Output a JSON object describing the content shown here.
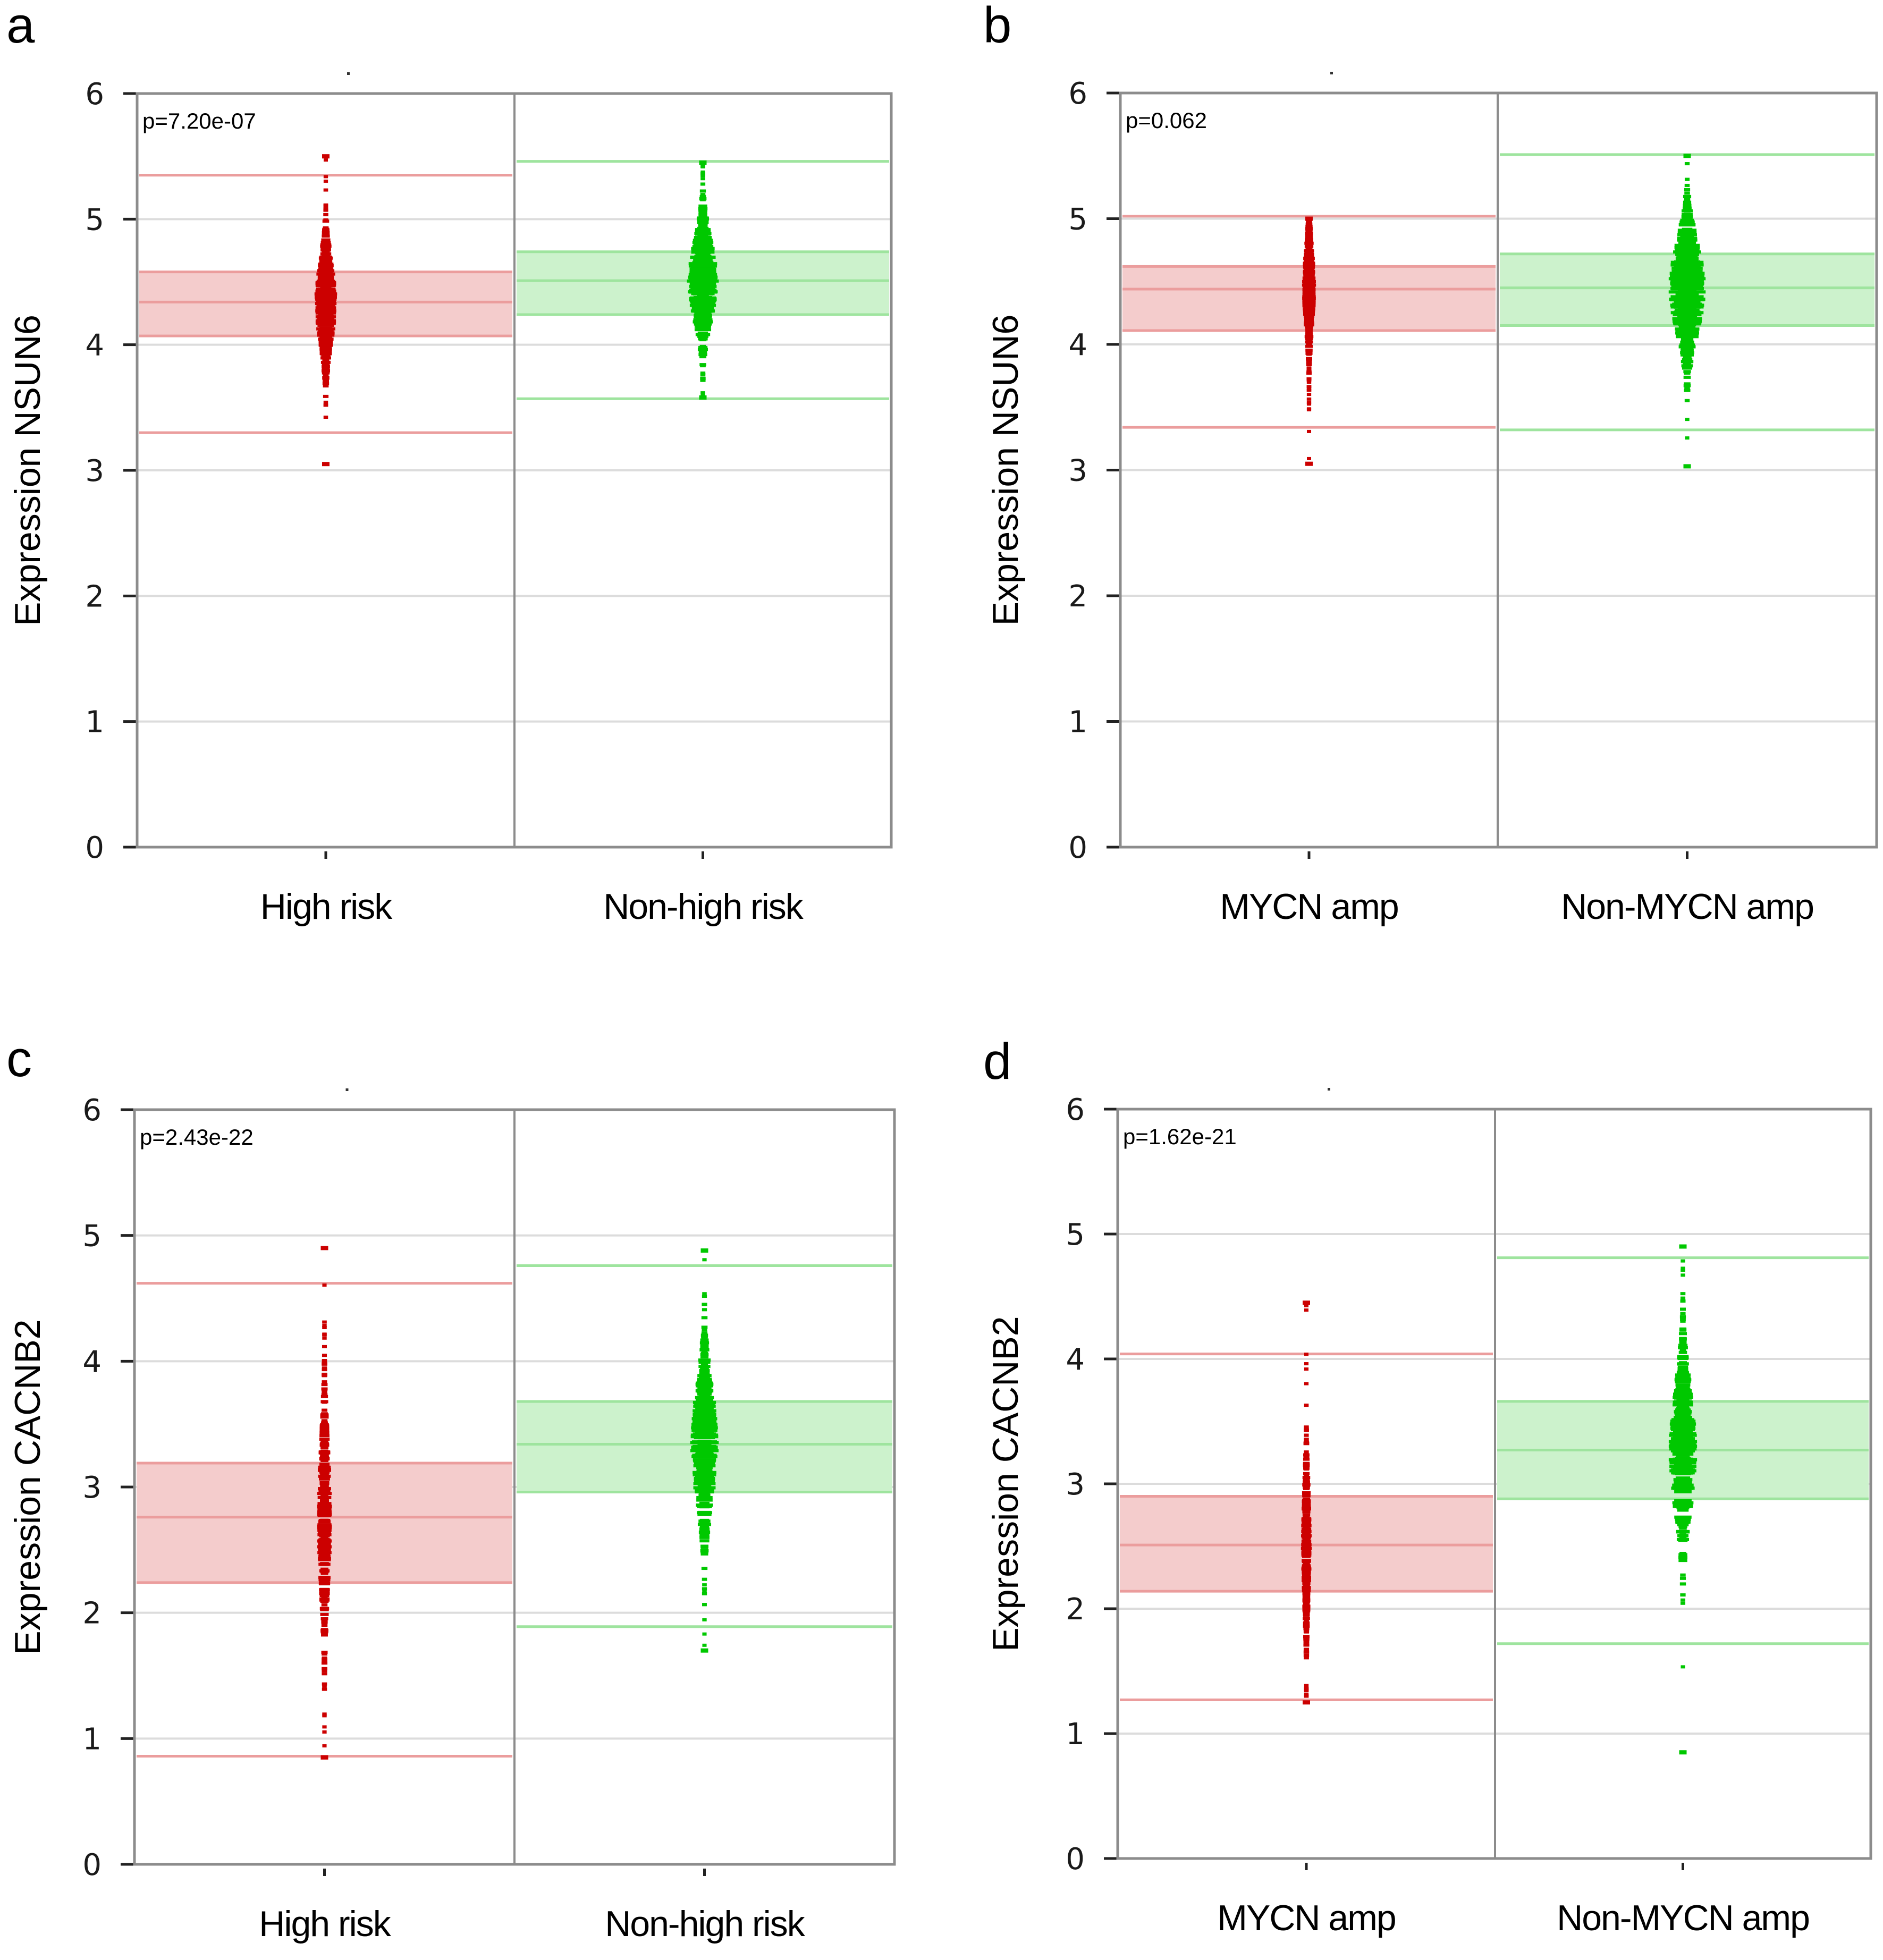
{
  "figure": {
    "colors": {
      "group1_point": "#cc0000",
      "group1_box_fill": "#f4cccc",
      "group1_line": "#eb9d9d",
      "group2_point": "#00c800",
      "group2_box_fill": "#ccf2cc",
      "group2_line": "#9ee49e",
      "frame": "#8c8c8c",
      "grid": "#dcdcdc"
    }
  },
  "chart_data": [
    {
      "panel": "a",
      "type": "scatter",
      "title": "",
      "ylabel": "Expression NSUN6",
      "xlabel": "",
      "ylim": [
        0,
        6
      ],
      "yticks": [
        "0",
        "1",
        "2",
        "3",
        "4",
        "5",
        "6"
      ],
      "grid": true,
      "annotation": "p=7.20e-07",
      "categories": [
        "High risk",
        "Non-high risk"
      ],
      "series": [
        {
          "name": "High risk",
          "whisker_low": 3.3,
          "q1": 4.07,
          "median": 4.34,
          "q3": 4.58,
          "whisker_high": 5.35,
          "points_min": 3.05,
          "points_max": 5.5,
          "spread": 0.42
        },
        {
          "name": "Non-high risk",
          "whisker_low": 3.57,
          "q1": 4.24,
          "median": 4.51,
          "q3": 4.74,
          "whisker_high": 5.46,
          "points_min": 3.58,
          "points_max": 5.45,
          "spread": 0.62
        }
      ]
    },
    {
      "panel": "b",
      "type": "scatter",
      "title": "",
      "ylabel": "Expression NSUN6",
      "xlabel": "",
      "ylim": [
        0,
        6
      ],
      "yticks": [
        "0",
        "1",
        "2",
        "3",
        "4",
        "5",
        "6"
      ],
      "grid": true,
      "annotation": "p=0.062",
      "categories": [
        "MYCN amp",
        "Non-MYCN amp"
      ],
      "series": [
        {
          "name": "MYCN amp",
          "whisker_low": 3.34,
          "q1": 4.11,
          "median": 4.44,
          "q3": 4.62,
          "whisker_high": 5.02,
          "points_min": 3.05,
          "points_max": 5.0,
          "spread": 0.22
        },
        {
          "name": "Non-MYCN amp",
          "whisker_low": 3.32,
          "q1": 4.15,
          "median": 4.45,
          "q3": 4.72,
          "whisker_high": 5.51,
          "points_min": 3.03,
          "points_max": 5.5,
          "spread": 0.75
        }
      ]
    },
    {
      "panel": "c",
      "type": "scatter",
      "title": "",
      "ylabel": "Expression CACNB2",
      "xlabel": "",
      "ylim": [
        0,
        6
      ],
      "yticks": [
        "0",
        "1",
        "2",
        "3",
        "4",
        "5",
        "6"
      ],
      "grid": true,
      "annotation": "p=2.43e-22",
      "categories": [
        "High risk",
        "Non-high risk"
      ],
      "series": [
        {
          "name": "High risk",
          "whisker_low": 0.86,
          "q1": 2.24,
          "median": 2.76,
          "q3": 3.19,
          "whisker_high": 4.62,
          "points_min": 0.85,
          "points_max": 4.9,
          "spread": 0.25
        },
        {
          "name": "Non-high risk",
          "whisker_low": 1.89,
          "q1": 2.96,
          "median": 3.34,
          "q3": 3.68,
          "whisker_high": 4.76,
          "points_min": 1.7,
          "points_max": 4.88,
          "spread": 0.55
        }
      ]
    },
    {
      "panel": "d",
      "type": "scatter",
      "title": "",
      "ylabel": "Expression CACNB2",
      "xlabel": "",
      "ylim": [
        0,
        6
      ],
      "yticks": [
        "0",
        "1",
        "2",
        "3",
        "4",
        "5",
        "6"
      ],
      "grid": true,
      "annotation": "p=1.62e-21",
      "categories": [
        "MYCN amp",
        "Non-MYCN amp"
      ],
      "series": [
        {
          "name": "MYCN amp",
          "whisker_low": 1.27,
          "q1": 2.14,
          "median": 2.51,
          "q3": 2.9,
          "whisker_high": 4.04,
          "points_min": 1.25,
          "points_max": 4.45,
          "spread": 0.15
        },
        {
          "name": "Non-MYCN amp",
          "whisker_low": 1.72,
          "q1": 2.88,
          "median": 3.27,
          "q3": 3.66,
          "whisker_high": 4.81,
          "points_min": 0.85,
          "points_max": 4.9,
          "spread": 0.55
        }
      ]
    }
  ]
}
